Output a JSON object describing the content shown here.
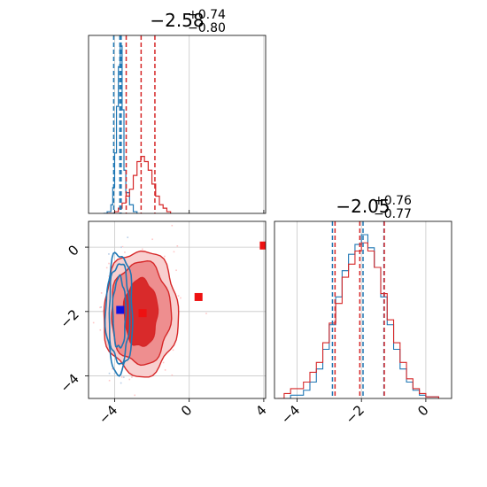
{
  "chart_data": [
    {
      "panel": "marginal-x",
      "type": "histogram",
      "title": {
        "main": "−2.58",
        "sup": "+0.74",
        "sub": "−0.80"
      },
      "xlim": [
        -5.4,
        4.1
      ],
      "grid": true,
      "series": [
        {
          "color": "#1f77b4",
          "bins": [
            [
              -4.6,
              0
            ],
            [
              -4.4,
              0.01
            ],
            [
              -4.2,
              0.05
            ],
            [
              -4.1,
              0.15
            ],
            [
              -4.0,
              0.35
            ],
            [
              -3.9,
              0.62
            ],
            [
              -3.8,
              0.85
            ],
            [
              -3.7,
              0.97
            ],
            [
              -3.6,
              0.6
            ],
            [
              -3.5,
              0.25
            ],
            [
              -3.4,
              0.12
            ],
            [
              -3.2,
              0.05
            ],
            [
              -3.0,
              0.01
            ],
            [
              -2.8,
              0
            ]
          ],
          "quantiles": [
            -4.05,
            -3.72,
            -3.65
          ]
        },
        {
          "color": "#d62728",
          "bins": [
            [
              -4.4,
              0
            ],
            [
              -4.0,
              0.01
            ],
            [
              -3.8,
              0.03
            ],
            [
              -3.6,
              0.06
            ],
            [
              -3.4,
              0.1
            ],
            [
              -3.2,
              0.14
            ],
            [
              -3.0,
              0.22
            ],
            [
              -2.8,
              0.3
            ],
            [
              -2.6,
              0.33
            ],
            [
              -2.4,
              0.3
            ],
            [
              -2.2,
              0.25
            ],
            [
              -2.0,
              0.17
            ],
            [
              -1.8,
              0.1
            ],
            [
              -1.6,
              0.05
            ],
            [
              -1.4,
              0.03
            ],
            [
              -1.2,
              0.01
            ],
            [
              -1.0,
              0
            ]
          ],
          "quantiles": [
            -3.38,
            -2.58,
            -1.84
          ]
        }
      ]
    },
    {
      "panel": "joint",
      "type": "scatter",
      "xlim": [
        -5.4,
        4.1
      ],
      "ylim": [
        -4.7,
        0.8
      ],
      "xticks": [
        "−4",
        "0",
        "4"
      ],
      "yticks": [
        "0",
        "−2",
        "−4"
      ],
      "grid": true,
      "markers": [
        {
          "x": -3.7,
          "y": -1.95,
          "color": "#1010e0"
        },
        {
          "x": -2.5,
          "y": -2.05,
          "color": "#ee1111"
        },
        {
          "x": 0.5,
          "y": -1.55,
          "color": "#ee1111"
        },
        {
          "x": 4.0,
          "y": 0.05,
          "color": "#ee1111"
        }
      ],
      "contours": [
        {
          "color": "#d62728",
          "cx": -2.6,
          "cy": -2.05,
          "rx": [
            0.9,
            1.6,
            2.0
          ],
          "ry": [
            1.05,
            1.6,
            1.95
          ]
        },
        {
          "color": "#1f77b4",
          "cx": -3.75,
          "cy": -2.05,
          "rx": [
            0.35,
            0.55,
            0.72
          ],
          "ry": [
            1.1,
            1.55,
            1.85
          ]
        }
      ]
    },
    {
      "panel": "marginal-y",
      "type": "histogram",
      "title": {
        "main": "−2.05",
        "sup": "+0.76",
        "sub": "−0.77"
      },
      "xlim": [
        -4.7,
        0.8
      ],
      "xticks": [
        "−4",
        "−2",
        "0"
      ],
      "grid": true,
      "series": [
        {
          "color": "#1f77b4",
          "bins": [
            [
              -4.6,
              0
            ],
            [
              -4.2,
              0.02
            ],
            [
              -3.8,
              0.05
            ],
            [
              -3.6,
              0.1
            ],
            [
              -3.4,
              0.18
            ],
            [
              -3.2,
              0.3
            ],
            [
              -3.0,
              0.45
            ],
            [
              -2.8,
              0.62
            ],
            [
              -2.6,
              0.78
            ],
            [
              -2.4,
              0.88
            ],
            [
              -2.2,
              0.94
            ],
            [
              -2.0,
              1.0
            ],
            [
              -1.8,
              0.92
            ],
            [
              -1.6,
              0.8
            ],
            [
              -1.4,
              0.62
            ],
            [
              -1.2,
              0.45
            ],
            [
              -1.0,
              0.3
            ],
            [
              -0.8,
              0.18
            ],
            [
              -0.6,
              0.1
            ],
            [
              -0.4,
              0.05
            ],
            [
              -0.2,
              0.02
            ],
            [
              0.0,
              0.01
            ],
            [
              0.4,
              0
            ]
          ],
          "quantiles": [
            -2.9,
            -1.95,
            -1.3
          ]
        },
        {
          "color": "#d62728",
          "bins": [
            [
              -4.6,
              0
            ],
            [
              -4.4,
              0.03
            ],
            [
              -4.2,
              0.06
            ],
            [
              -3.8,
              0.1
            ],
            [
              -3.6,
              0.16
            ],
            [
              -3.4,
              0.22
            ],
            [
              -3.2,
              0.34
            ],
            [
              -3.0,
              0.46
            ],
            [
              -2.8,
              0.58
            ],
            [
              -2.6,
              0.74
            ],
            [
              -2.4,
              0.82
            ],
            [
              -2.2,
              0.9
            ],
            [
              -2.0,
              0.95
            ],
            [
              -1.8,
              0.9
            ],
            [
              -1.6,
              0.8
            ],
            [
              -1.4,
              0.64
            ],
            [
              -1.2,
              0.48
            ],
            [
              -1.0,
              0.34
            ],
            [
              -0.8,
              0.22
            ],
            [
              -0.6,
              0.12
            ],
            [
              -0.4,
              0.06
            ],
            [
              -0.2,
              0.03
            ],
            [
              0.0,
              0.01
            ],
            [
              0.4,
              0
            ]
          ],
          "quantiles": [
            -2.82,
            -2.05,
            -1.29
          ]
        }
      ]
    }
  ]
}
